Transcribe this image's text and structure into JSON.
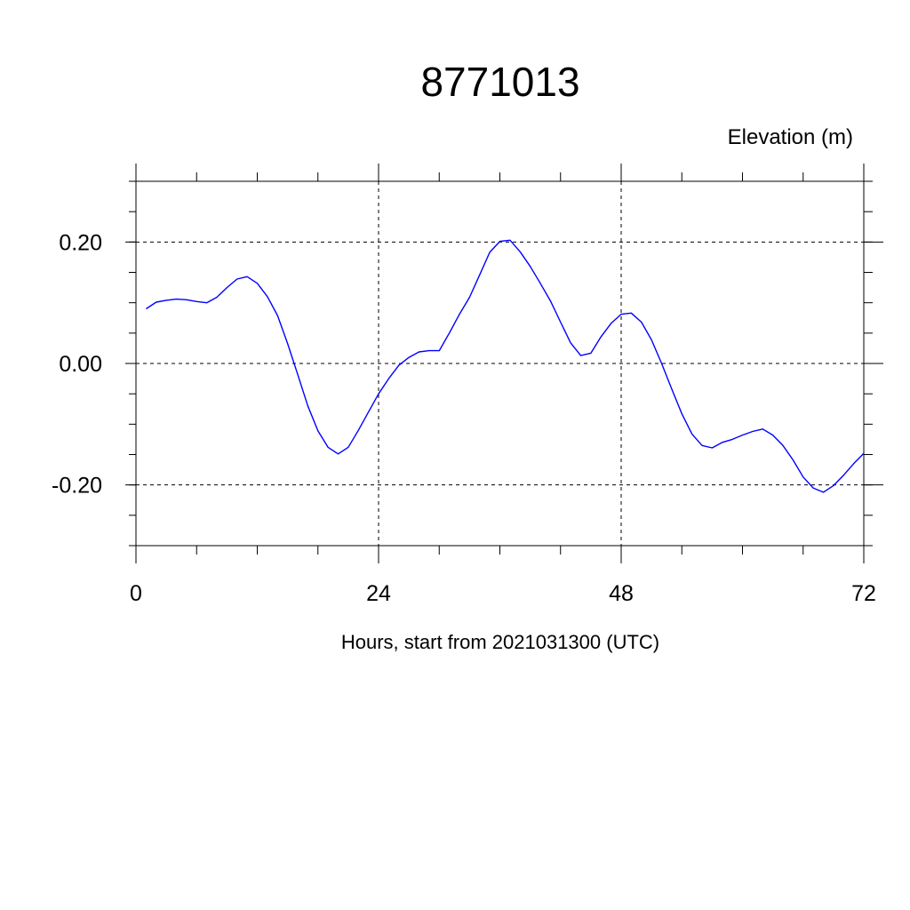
{
  "chart_data": {
    "type": "line",
    "title": "8771013",
    "unit_label": "Elevation (m)",
    "xlabel": "Hours, start from 2021031300 (UTC)",
    "xlim": [
      0,
      72
    ],
    "ylim": [
      -0.3,
      0.3
    ],
    "x_major_ticks": [
      0,
      24,
      48,
      72
    ],
    "x_tick_labels": [
      "0",
      "24",
      "48",
      "72"
    ],
    "x_minor_step": 6,
    "y_major_ticks": [
      0.2,
      0.0,
      -0.2
    ],
    "y_tick_labels": [
      "0.20",
      "0.00",
      "-0.20"
    ],
    "y_minor_step": 0.05,
    "grid": "dashed at major ticks",
    "line_color": "#0000ff",
    "series": [
      {
        "x": [
          1,
          2,
          3,
          4,
          5,
          6,
          7,
          8,
          9,
          10,
          11,
          12,
          13,
          14,
          15,
          16,
          17,
          18,
          19,
          20,
          21,
          22,
          23,
          24,
          25,
          26,
          27,
          28,
          29,
          30,
          31,
          32,
          33,
          34,
          35,
          36,
          37,
          38,
          39,
          40,
          41,
          42,
          43,
          44,
          45,
          46,
          47,
          48,
          49,
          50,
          51,
          52,
          53,
          54,
          55,
          56,
          57,
          58,
          59,
          60,
          61,
          62,
          63,
          64,
          65,
          66,
          67,
          68,
          69,
          70,
          71,
          72
        ],
        "y": [
          0.09,
          0.101,
          0.104,
          0.106,
          0.105,
          0.102,
          0.1,
          0.109,
          0.125,
          0.139,
          0.143,
          0.132,
          0.11,
          0.079,
          0.033,
          -0.018,
          -0.07,
          -0.111,
          -0.138,
          -0.149,
          -0.138,
          -0.11,
          -0.08,
          -0.05,
          -0.025,
          -0.003,
          0.01,
          0.019,
          0.021,
          0.021,
          0.05,
          0.081,
          0.109,
          0.146,
          0.183,
          0.201,
          0.203,
          0.184,
          0.16,
          0.132,
          0.103,
          0.068,
          0.034,
          0.013,
          0.017,
          0.044,
          0.066,
          0.081,
          0.083,
          0.068,
          0.039,
          0.0,
          -0.042,
          -0.083,
          -0.116,
          -0.135,
          -0.139,
          -0.13,
          -0.125,
          -0.118,
          -0.112,
          -0.108,
          -0.118,
          -0.135,
          -0.159,
          -0.187,
          -0.205,
          -0.212,
          -0.201,
          -0.184,
          -0.165,
          -0.148
        ]
      }
    ]
  }
}
